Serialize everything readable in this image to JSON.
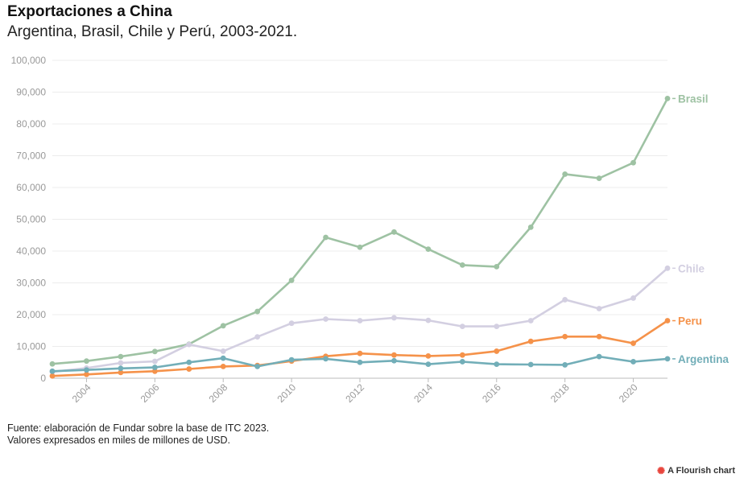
{
  "chart_data": {
    "type": "line",
    "title": "Exportaciones a China",
    "subtitle": "Argentina, Brasil, Chile y Perú, 2003-2021.",
    "xlabel": "",
    "ylabel": "",
    "xlim": [
      2003,
      2021
    ],
    "ylim": [
      0,
      100000
    ],
    "yticks": [
      0,
      10000,
      20000,
      30000,
      40000,
      50000,
      60000,
      70000,
      80000,
      90000,
      100000
    ],
    "ytick_labels": [
      "0",
      "10,000",
      "20,000",
      "30,000",
      "40,000",
      "50,000",
      "60,000",
      "70,000",
      "80,000",
      "90,000",
      "100,000"
    ],
    "xticks": [
      2004,
      2006,
      2008,
      2010,
      2012,
      2014,
      2016,
      2018,
      2020
    ],
    "xtick_labels": [
      "2004",
      "2006",
      "2008",
      "2010",
      "2012",
      "2014",
      "2016",
      "2018",
      "2020"
    ],
    "x": [
      2003,
      2004,
      2005,
      2006,
      2007,
      2008,
      2009,
      2010,
      2011,
      2012,
      2013,
      2014,
      2015,
      2016,
      2017,
      2018,
      2019,
      2020,
      2021
    ],
    "series": [
      {
        "name": "Brasil",
        "label": "Brasil",
        "color": "#9ec2a3",
        "values": [
          4500,
          5400,
          6800,
          8400,
          10700,
          16500,
          21000,
          30800,
          44300,
          41200,
          46000,
          40600,
          35600,
          35100,
          47500,
          64200,
          62900,
          67800,
          88000
        ]
      },
      {
        "name": "Chile",
        "label": "Chile",
        "color": "#d3cfe1",
        "values": [
          2000,
          3200,
          4800,
          5300,
          10600,
          8500,
          13000,
          17300,
          18600,
          18100,
          19000,
          18200,
          16300,
          16300,
          18100,
          24700,
          21900,
          25200,
          34600
        ]
      },
      {
        "name": "Peru",
        "label": "Peru",
        "color": "#f5924a",
        "values": [
          700,
          1200,
          1800,
          2200,
          2900,
          3700,
          4000,
          5400,
          6900,
          7800,
          7300,
          7000,
          7300,
          8500,
          11600,
          13100,
          13100,
          11000,
          18100
        ]
      },
      {
        "name": "Argentina",
        "label": "Argentina",
        "color": "#72aeb8",
        "values": [
          2200,
          2600,
          3100,
          3400,
          5000,
          6300,
          3700,
          5800,
          6100,
          5000,
          5500,
          4400,
          5200,
          4400,
          4300,
          4200,
          6800,
          5200,
          6100
        ]
      }
    ]
  },
  "footer": {
    "line1": "Fuente: elaboración de Fundar sobre la base de ITC 2023.",
    "line2": "Valores expresados en miles de millones de USD."
  },
  "branding": {
    "text": "A Flourish chart",
    "icon": "flourish-logo-icon",
    "color": "#e8453c"
  }
}
